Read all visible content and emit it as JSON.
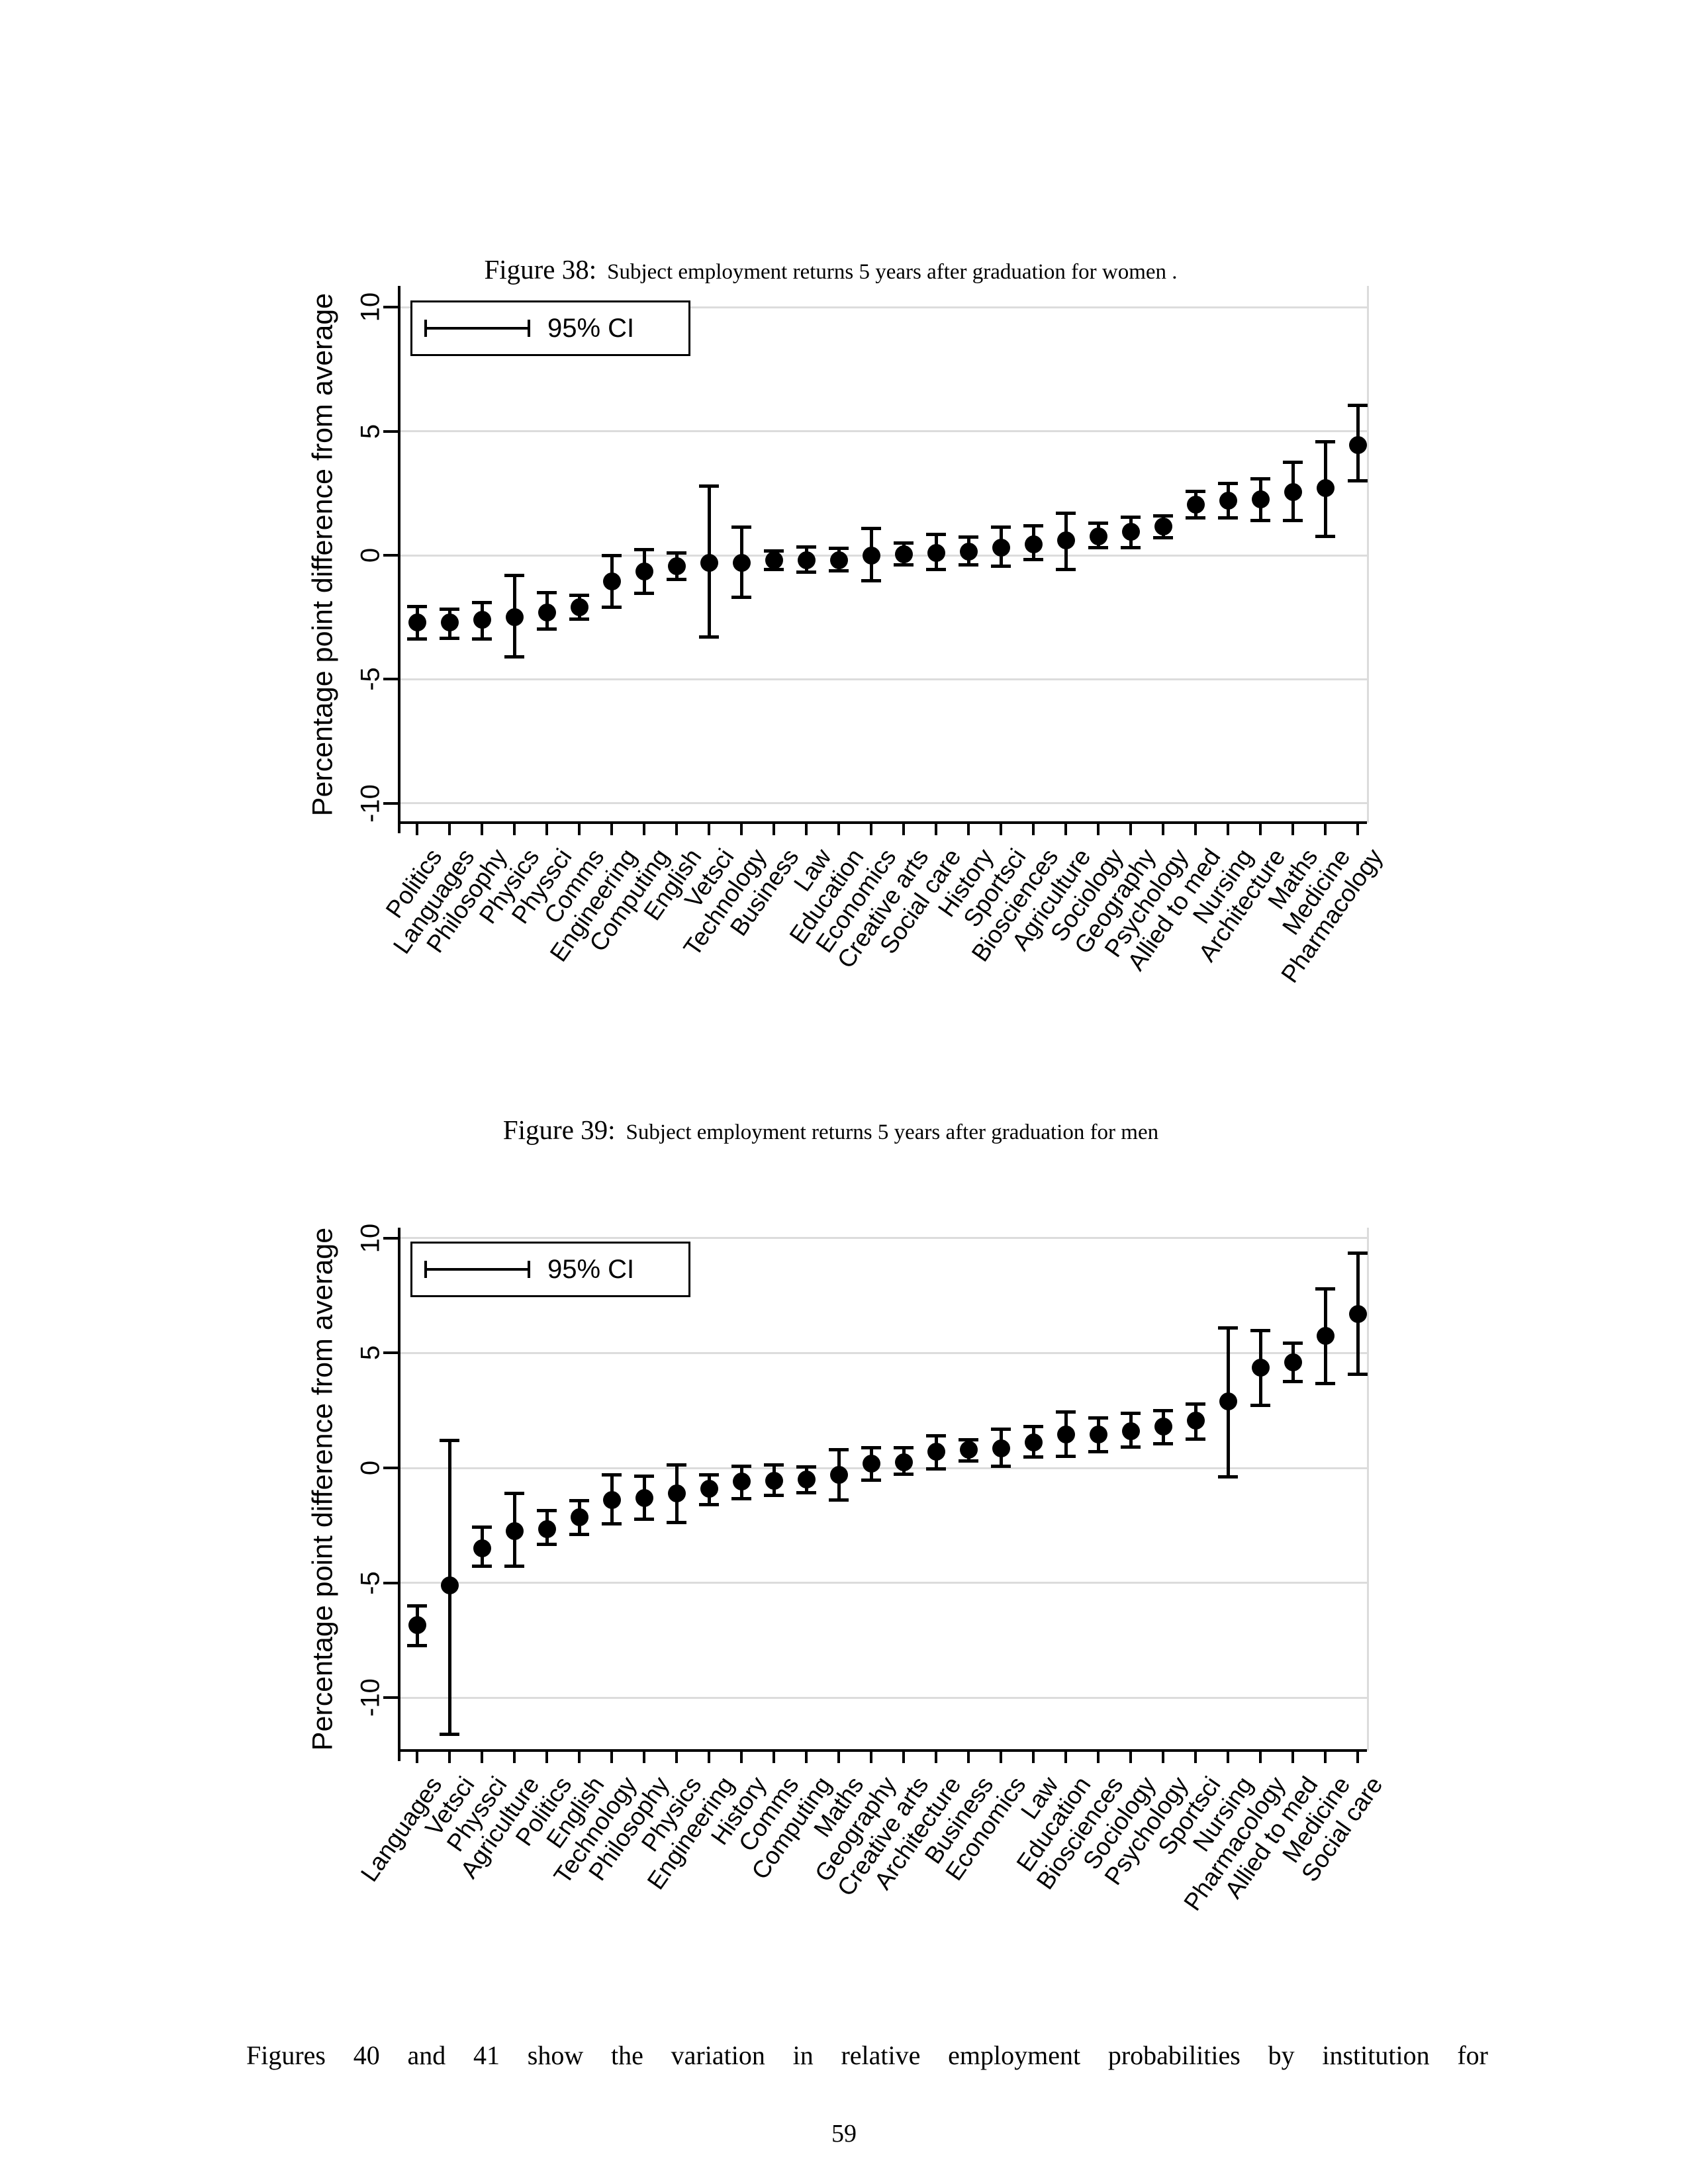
{
  "page": {
    "footer_text": "Figures 40 and 41 show the variation in relative employment probabilities by institution for",
    "page_number": "59"
  },
  "figures": [
    {
      "caption_prefix": "Figure 38:",
      "caption_text": "Subject employment returns 5 years after graduation for women ."
    },
    {
      "caption_prefix": "Figure 39:",
      "caption_text": "Subject employment returns 5 years after graduation for men"
    }
  ],
  "chart_data": [
    {
      "type": "scatter",
      "subtype": "point-estimates-with-95ci",
      "title": "Subject employment returns 5 years after graduation for women",
      "ylabel": "Percentage point difference from average",
      "xlabel": "",
      "legend": "95% CI",
      "legend_position": "top-left",
      "grid": true,
      "ylim": [
        -10.8,
        11.0
      ],
      "ytick_values": [
        10,
        5,
        0,
        -5,
        -10
      ],
      "ytick_labels": [
        "10",
        "5",
        "0",
        "-5",
        "-10"
      ],
      "categories": [
        "Politics",
        "Languages",
        "Philosophy",
        "Physics",
        "Physsci",
        "Comms",
        "Engineering",
        "Computing",
        "English",
        "Vetsci",
        "Technology",
        "Business",
        "Law",
        "Education",
        "Economics",
        "Creative arts",
        "Social care",
        "History",
        "Sportsci",
        "Biosciences",
        "Agriculture",
        "Sociology",
        "Geography",
        "Psychology",
        "Allied to med",
        "Nursing",
        "Architecture",
        "Maths",
        "Medicine",
        "Pharmacology"
      ],
      "series": [
        {
          "name": "estimate",
          "values": [
            -2.7,
            -2.7,
            -2.6,
            -2.5,
            -2.3,
            -2.1,
            -1.05,
            -0.65,
            -0.45,
            -0.3,
            -0.3,
            -0.2,
            -0.2,
            -0.2,
            0,
            0.05,
            0.1,
            0.15,
            0.3,
            0.45,
            0.6,
            0.75,
            0.95,
            1.15,
            2.05,
            2.2,
            2.25,
            2.55,
            2.7,
            4.45
          ]
        },
        {
          "name": "ci_low",
          "values": [
            -3.4,
            -3.35,
            -3.4,
            -4.1,
            -3.0,
            -2.6,
            -2.1,
            -1.55,
            -1.0,
            -3.3,
            -1.7,
            -0.6,
            -0.7,
            -0.65,
            -1.05,
            -0.4,
            -0.6,
            -0.4,
            -0.45,
            -0.2,
            -0.6,
            0.3,
            0.3,
            0.7,
            1.5,
            1.5,
            1.4,
            1.4,
            0.75,
            3.0
          ]
        },
        {
          "name": "ci_high",
          "values": [
            -2.05,
            -2.15,
            -1.9,
            -0.8,
            -1.5,
            -1.6,
            0.0,
            0.25,
            0.1,
            2.8,
            1.15,
            0.2,
            0.35,
            0.3,
            1.1,
            0.5,
            0.85,
            0.75,
            1.15,
            1.2,
            1.7,
            1.3,
            1.55,
            1.6,
            2.6,
            2.9,
            3.1,
            3.75,
            4.6,
            6.05
          ]
        }
      ]
    },
    {
      "type": "scatter",
      "subtype": "point-estimates-with-95ci",
      "title": "Subject employment returns 5 years after graduation for men",
      "ylabel": "Percentage point difference from average",
      "xlabel": "",
      "legend": "95% CI",
      "legend_position": "top-left",
      "grid": true,
      "ylim": [
        -12.3,
        10.5
      ],
      "ytick_values": [
        10,
        5,
        0,
        -5,
        -10
      ],
      "ytick_labels": [
        "10",
        "5",
        "0",
        "-5",
        "-10"
      ],
      "categories": [
        "Languages",
        "Vetsci",
        "Physsci",
        "Agriculture",
        "Politics",
        "English",
        "Technology",
        "Philosophy",
        "Physics",
        "Engineering",
        "History",
        "Comms",
        "Computing",
        "Maths",
        "Geography",
        "Creative arts",
        "Architecture",
        "Business",
        "Economics",
        "Law",
        "Education",
        "Biosciences",
        "Sociology",
        "Psychology",
        "Sportsci",
        "Nursing",
        "Pharmacology",
        "Allied to med",
        "Medicine",
        "Social care"
      ],
      "series": [
        {
          "name": "estimate",
          "values": [
            -6.85,
            -5.1,
            -3.5,
            -2.75,
            -2.65,
            -2.15,
            -1.4,
            -1.3,
            -1.1,
            -0.9,
            -0.6,
            -0.55,
            -0.5,
            -0.3,
            0.2,
            0.25,
            0.7,
            0.8,
            0.85,
            1.1,
            1.45,
            1.45,
            1.6,
            1.8,
            2.05,
            2.9,
            4.35,
            4.6,
            5.75,
            6.7
          ]
        },
        {
          "name": "ci_low",
          "values": [
            -7.75,
            -11.6,
            -4.3,
            -4.3,
            -3.35,
            -2.9,
            -2.45,
            -2.25,
            -2.4,
            -1.6,
            -1.35,
            -1.2,
            -1.1,
            -1.4,
            -0.55,
            -0.3,
            -0.05,
            0.3,
            0.05,
            0.45,
            0.5,
            0.7,
            0.9,
            1.05,
            1.25,
            -0.4,
            2.7,
            3.75,
            3.65,
            4.05
          ]
        },
        {
          "name": "ci_high",
          "values": [
            -6.0,
            1.2,
            -2.55,
            -1.1,
            -1.85,
            -1.4,
            -0.3,
            -0.35,
            0.15,
            -0.3,
            0.1,
            0.15,
            0.05,
            0.8,
            0.9,
            0.9,
            1.4,
            1.25,
            1.7,
            1.8,
            2.45,
            2.2,
            2.4,
            2.5,
            2.8,
            6.1,
            6.0,
            5.45,
            7.8,
            9.35
          ]
        }
      ]
    }
  ]
}
